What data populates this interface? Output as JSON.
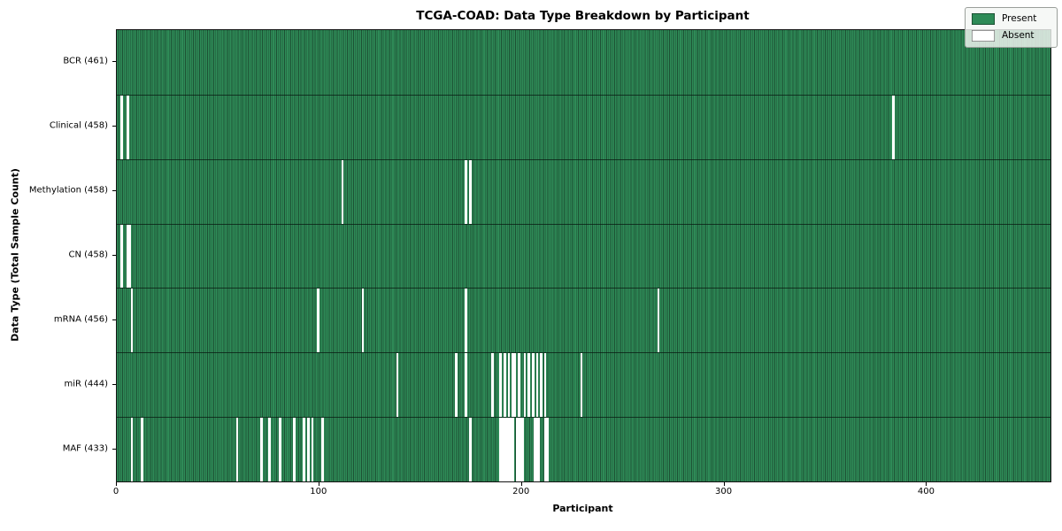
{
  "chart_data": {
    "type": "heatmap",
    "title": "TCGA-COAD: Data Type Breakdown by Participant",
    "xlabel": "Participant",
    "ylabel": "Data Type (Total Sample Count)",
    "n_participants": 461,
    "xlim": [
      0,
      461
    ],
    "x_ticks": [
      0,
      100,
      200,
      300,
      400
    ],
    "grid": false,
    "legend": {
      "position": "upper right",
      "entries": [
        {
          "label": "Present",
          "color": "#2e8b57"
        },
        {
          "label": "Absent",
          "color": "#ffffff"
        }
      ]
    },
    "colors": {
      "present": "#2e8b57",
      "present_edge": "#1d5134",
      "absent": "#ffffff",
      "row_separator": "#142c1c",
      "plot_border": "#141414"
    },
    "rows": [
      {
        "label": "BCR (461)",
        "data_type": "BCR",
        "total": 461,
        "absent_participants": []
      },
      {
        "label": "Clinical (458)",
        "data_type": "Clinical",
        "total": 458,
        "absent_participants": [
          2,
          5,
          383
        ]
      },
      {
        "label": "Methylation (458)",
        "data_type": "Methylation",
        "total": 458,
        "absent_participants": [
          111,
          172,
          174
        ]
      },
      {
        "label": "CN (458)",
        "data_type": "CN",
        "total": 458,
        "absent_participants": [
          2,
          5,
          6
        ]
      },
      {
        "label": "mRNA (456)",
        "data_type": "mRNA",
        "total": 456,
        "absent_participants": [
          7,
          99,
          121,
          172,
          267
        ]
      },
      {
        "label": "miR (444)",
        "data_type": "miR",
        "total": 444,
        "absent_participants": [
          138,
          167,
          172,
          185,
          189,
          191,
          193,
          195,
          196,
          198,
          201,
          203,
          205,
          207,
          209,
          211,
          229
        ]
      },
      {
        "label": "MAF (433)",
        "data_type": "MAF",
        "total": 433,
        "absent_participants": [
          7,
          12,
          59,
          71,
          75,
          80,
          87,
          92,
          94,
          96,
          101,
          174,
          189,
          190,
          191,
          192,
          193,
          194,
          195,
          197,
          198,
          199,
          200,
          206,
          207,
          208,
          211,
          212
        ]
      }
    ]
  }
}
